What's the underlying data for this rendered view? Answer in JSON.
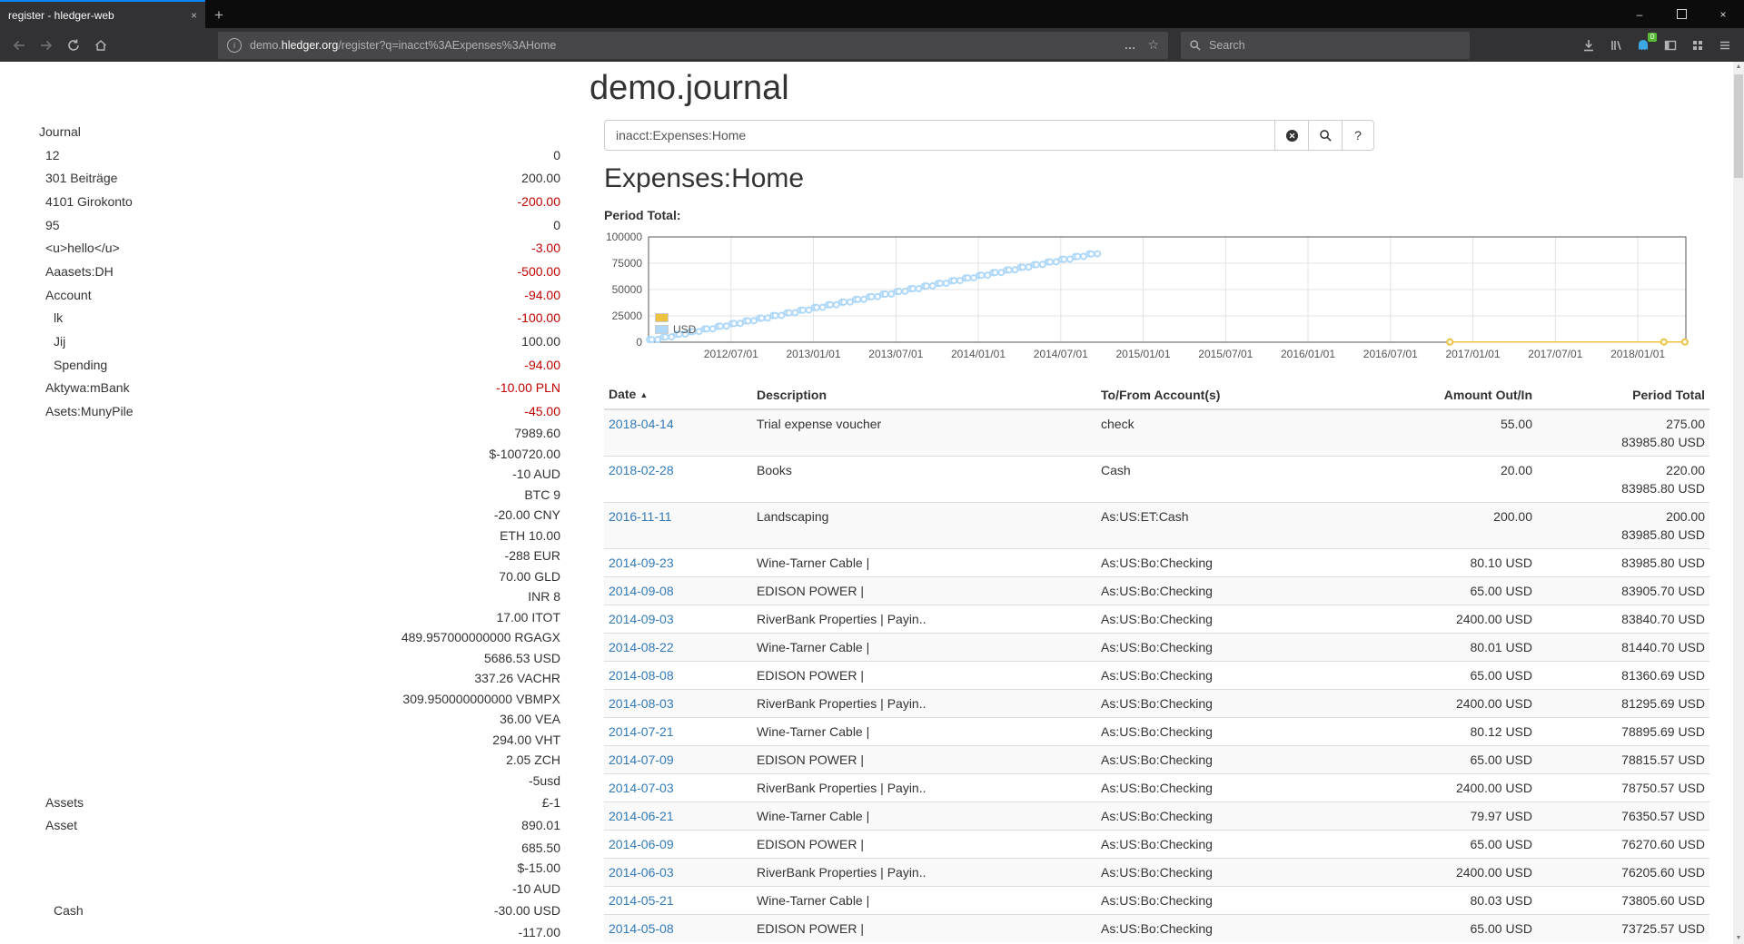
{
  "browser": {
    "tab_title": "register - hledger-web",
    "url": {
      "pre": "demo.",
      "domain": "hledger.org",
      "path": "/register?q=inacct%3AExpenses%3AHome"
    },
    "search_placeholder": "Search",
    "extension_badge": "0"
  },
  "page": {
    "title": "demo.journal",
    "query": "inacct:Expenses:Home",
    "heading": "Expenses:Home",
    "period_total_label": "Period Total:",
    "help_label": "?"
  },
  "sidebar": {
    "heading": "Journal",
    "rows": [
      {
        "label": "12",
        "amount": "0",
        "depth": 1,
        "neg": false
      },
      {
        "label": "301 Beiträge",
        "amount": "200.00",
        "depth": 1,
        "neg": false
      },
      {
        "label": "4101 Girokonto",
        "amount": "-200.00",
        "depth": 1,
        "neg": true
      },
      {
        "label": "95",
        "amount": "0",
        "depth": 1,
        "neg": false
      },
      {
        "label": "<u>hello</u>",
        "amount": "-3.00",
        "depth": 1,
        "neg": true
      },
      {
        "label": "Aaasets:DH",
        "amount": "-500.00",
        "depth": 1,
        "neg": true
      },
      {
        "label": "Account",
        "amount": "-94.00",
        "depth": 1,
        "neg": true
      },
      {
        "label": "lk",
        "amount": "-100.00",
        "depth": 2,
        "neg": true
      },
      {
        "label": "Jij",
        "amount": "100.00",
        "depth": 2,
        "neg": false
      },
      {
        "label": "Spending",
        "amount": "-94.00",
        "depth": 2,
        "neg": true
      },
      {
        "label": "Aktywa:mBank",
        "amount": "-10.00 PLN",
        "depth": 1,
        "neg": true
      },
      {
        "label": "Asets:MunyPile",
        "amount": "-45.00",
        "depth": 1,
        "neg": true
      },
      {
        "label": "",
        "amount": "7989.60",
        "neg": false
      },
      {
        "label": "",
        "amount": "$-100720.00",
        "neg": false
      },
      {
        "label": "",
        "amount": "-10 AUD",
        "neg": false
      },
      {
        "label": "",
        "amount": "BTC 9",
        "neg": false
      },
      {
        "label": "",
        "amount": "-20.00 CNY",
        "neg": false
      },
      {
        "label": "",
        "amount": "ETH 10.00",
        "neg": false
      },
      {
        "label": "",
        "amount": "-288 EUR",
        "neg": false
      },
      {
        "label": "",
        "amount": "70.00 GLD",
        "neg": false
      },
      {
        "label": "",
        "amount": "INR 8",
        "neg": false
      },
      {
        "label": "",
        "amount": "17.00 ITOT",
        "neg": false
      },
      {
        "label": "",
        "amount": "489.957000000000 RGAGX",
        "neg": false
      },
      {
        "label": "",
        "amount": "5686.53 USD",
        "neg": false
      },
      {
        "label": "",
        "amount": "337.26 VACHR",
        "neg": false
      },
      {
        "label": "",
        "amount": "309.950000000000 VBMPX",
        "neg": false
      },
      {
        "label": "",
        "amount": "36.00 VEA",
        "neg": false
      },
      {
        "label": "",
        "amount": "294.00 VHT",
        "neg": false
      },
      {
        "label": "",
        "amount": "2.05 ZCH",
        "neg": false
      },
      {
        "label": "",
        "amount": "-5usd",
        "neg": false
      },
      {
        "label": "Assets",
        "amount": "£-1",
        "depth": 1,
        "neg": false
      },
      {
        "label": "Asset",
        "amount": "890.01",
        "depth": 1,
        "neg": false
      },
      {
        "label": "",
        "amount": "685.50",
        "neg": false
      },
      {
        "label": "",
        "amount": "$-15.00",
        "neg": false
      },
      {
        "label": "",
        "amount": "-10 AUD",
        "neg": false
      },
      {
        "label": "Cash",
        "amount": "-30.00 USD",
        "depth": 2,
        "neg": false
      },
      {
        "label": "",
        "amount": "-117.00",
        "neg": false
      }
    ]
  },
  "chart_data": {
    "type": "line",
    "title": "Period Total:",
    "x_axis": {
      "unit": "months since 2012-01-01",
      "min": 0,
      "max": 75.5,
      "ticks": [
        {
          "m": 6,
          "label": "2012/07/01"
        },
        {
          "m": 12,
          "label": "2013/01/01"
        },
        {
          "m": 18,
          "label": "2013/07/01"
        },
        {
          "m": 24,
          "label": "2014/01/01"
        },
        {
          "m": 30,
          "label": "2014/07/01"
        },
        {
          "m": 36,
          "label": "2015/01/01"
        },
        {
          "m": 42,
          "label": "2015/07/01"
        },
        {
          "m": 48,
          "label": "2016/01/01"
        },
        {
          "m": 54,
          "label": "2016/07/01"
        },
        {
          "m": 60,
          "label": "2017/01/01"
        },
        {
          "m": 66,
          "label": "2017/07/01"
        },
        {
          "m": 72,
          "label": "2018/01/01"
        }
      ]
    },
    "y_axis": {
      "min": 0,
      "max": 100000,
      "ticks": [
        0,
        25000,
        50000,
        75000,
        100000
      ]
    },
    "legend": [
      {
        "label": "",
        "color": "#edc240"
      },
      {
        "label": "USD",
        "color": "#afd8f8"
      }
    ],
    "series": [
      {
        "name": "",
        "color": "#edc240",
        "points": [
          [
            58.33,
            200
          ],
          [
            73.9,
            220
          ],
          [
            75.43,
            275
          ]
        ]
      },
      {
        "name": "USD",
        "color": "#afd8f8",
        "points": [
          [
            0.07,
            2400
          ],
          [
            0.23,
            2465
          ],
          [
            0.67,
            2545
          ],
          [
            1.07,
            4945
          ],
          [
            1.23,
            5010
          ],
          [
            1.67,
            5090
          ],
          [
            2.07,
            7490
          ],
          [
            2.23,
            7555
          ],
          [
            2.67,
            7635
          ],
          [
            3.07,
            10035
          ],
          [
            3.23,
            10100
          ],
          [
            3.67,
            10180
          ],
          [
            4.07,
            12580
          ],
          [
            4.23,
            12645
          ],
          [
            4.67,
            12725
          ],
          [
            5.07,
            15125
          ],
          [
            5.23,
            15190
          ],
          [
            5.67,
            15270
          ],
          [
            6.07,
            17670
          ],
          [
            6.23,
            17735
          ],
          [
            6.67,
            17815
          ],
          [
            7.07,
            20215
          ],
          [
            7.23,
            20280
          ],
          [
            7.67,
            20360
          ],
          [
            8.07,
            22760
          ],
          [
            8.23,
            22825
          ],
          [
            8.67,
            22905
          ],
          [
            9.07,
            25305
          ],
          [
            9.23,
            25370
          ],
          [
            9.67,
            25450
          ],
          [
            10.07,
            27850
          ],
          [
            10.23,
            27915
          ],
          [
            10.67,
            27995
          ],
          [
            11.07,
            30395
          ],
          [
            11.23,
            30460
          ],
          [
            11.67,
            30540
          ],
          [
            12.07,
            32940
          ],
          [
            12.23,
            33005
          ],
          [
            12.67,
            33085
          ],
          [
            13.07,
            35485
          ],
          [
            13.23,
            35550
          ],
          [
            13.67,
            35630
          ],
          [
            14.07,
            38030
          ],
          [
            14.23,
            38095
          ],
          [
            14.67,
            38175
          ],
          [
            15.07,
            40575
          ],
          [
            15.23,
            40640
          ],
          [
            15.67,
            40720
          ],
          [
            16.07,
            43120
          ],
          [
            16.23,
            43185
          ],
          [
            16.67,
            43265
          ],
          [
            17.07,
            45665
          ],
          [
            17.23,
            45730
          ],
          [
            17.67,
            45810
          ],
          [
            18.07,
            48210
          ],
          [
            18.23,
            48275
          ],
          [
            18.67,
            48355
          ],
          [
            19.07,
            50755
          ],
          [
            19.23,
            50820
          ],
          [
            19.67,
            50900
          ],
          [
            20.07,
            53300
          ],
          [
            20.23,
            53365
          ],
          [
            20.67,
            53445
          ],
          [
            21.07,
            55845
          ],
          [
            21.23,
            55910
          ],
          [
            21.67,
            55990
          ],
          [
            22.07,
            58390
          ],
          [
            22.23,
            58455
          ],
          [
            22.67,
            58535
          ],
          [
            23.07,
            60935
          ],
          [
            23.23,
            61000
          ],
          [
            23.67,
            61080
          ],
          [
            24.07,
            63480
          ],
          [
            24.23,
            63545
          ],
          [
            24.67,
            63625
          ],
          [
            25.07,
            66025
          ],
          [
            25.23,
            66090
          ],
          [
            25.67,
            66170
          ],
          [
            26.07,
            68570
          ],
          [
            26.23,
            68635
          ],
          [
            26.67,
            68715
          ],
          [
            27.07,
            71115
          ],
          [
            27.23,
            71180
          ],
          [
            27.67,
            71260
          ],
          [
            28.07,
            73660
          ],
          [
            28.23,
            73725
          ],
          [
            28.67,
            73805
          ],
          [
            29.07,
            76205
          ],
          [
            29.23,
            76270
          ],
          [
            29.67,
            76350
          ],
          [
            30.07,
            78750
          ],
          [
            30.23,
            78815
          ],
          [
            30.67,
            78895
          ],
          [
            31.07,
            81295
          ],
          [
            31.23,
            81360
          ],
          [
            31.67,
            81440
          ],
          [
            32.07,
            83840
          ],
          [
            32.23,
            83905
          ],
          [
            32.67,
            83985
          ]
        ]
      }
    ]
  },
  "register": {
    "sort_caret": "▲",
    "columns": [
      "Date",
      "Description",
      "To/From Account(s)",
      "Amount Out/In",
      "Period Total"
    ],
    "rows": [
      {
        "date": "2018-04-14",
        "description": "Trial expense voucher",
        "account": "check",
        "amount": "55.00",
        "total": [
          "275.00",
          "83985.80 USD"
        ]
      },
      {
        "date": "2018-02-28",
        "description": "Books",
        "account": "Cash",
        "amount": "20.00",
        "total": [
          "220.00",
          "83985.80 USD"
        ]
      },
      {
        "date": "2016-11-11",
        "description": "Landscaping",
        "account": "As:US:ET:Cash",
        "amount": "200.00",
        "total": [
          "200.00",
          "83985.80 USD"
        ]
      },
      {
        "date": "2014-09-23",
        "description": "Wine-Tarner Cable |",
        "account": "As:US:Bo:Checking",
        "amount": "80.10 USD",
        "total": [
          "83985.80 USD"
        ]
      },
      {
        "date": "2014-09-08",
        "description": "EDISON POWER |",
        "account": "As:US:Bo:Checking",
        "amount": "65.00 USD",
        "total": [
          "83905.70 USD"
        ]
      },
      {
        "date": "2014-09-03",
        "description": "RiverBank Properties | Payin..",
        "account": "As:US:Bo:Checking",
        "amount": "2400.00 USD",
        "total": [
          "83840.70 USD"
        ]
      },
      {
        "date": "2014-08-22",
        "description": "Wine-Tarner Cable |",
        "account": "As:US:Bo:Checking",
        "amount": "80.01 USD",
        "total": [
          "81440.70 USD"
        ]
      },
      {
        "date": "2014-08-08",
        "description": "EDISON POWER |",
        "account": "As:US:Bo:Checking",
        "amount": "65.00 USD",
        "total": [
          "81360.69 USD"
        ]
      },
      {
        "date": "2014-08-03",
        "description": "RiverBank Properties | Payin..",
        "account": "As:US:Bo:Checking",
        "amount": "2400.00 USD",
        "total": [
          "81295.69 USD"
        ]
      },
      {
        "date": "2014-07-21",
        "description": "Wine-Tarner Cable |",
        "account": "As:US:Bo:Checking",
        "amount": "80.12 USD",
        "total": [
          "78895.69 USD"
        ]
      },
      {
        "date": "2014-07-09",
        "description": "EDISON POWER |",
        "account": "As:US:Bo:Checking",
        "amount": "65.00 USD",
        "total": [
          "78815.57 USD"
        ]
      },
      {
        "date": "2014-07-03",
        "description": "RiverBank Properties | Payin..",
        "account": "As:US:Bo:Checking",
        "amount": "2400.00 USD",
        "total": [
          "78750.57 USD"
        ]
      },
      {
        "date": "2014-06-21",
        "description": "Wine-Tarner Cable |",
        "account": "As:US:Bo:Checking",
        "amount": "79.97 USD",
        "total": [
          "76350.57 USD"
        ]
      },
      {
        "date": "2014-06-09",
        "description": "EDISON POWER |",
        "account": "As:US:Bo:Checking",
        "amount": "65.00 USD",
        "total": [
          "76270.60 USD"
        ]
      },
      {
        "date": "2014-06-03",
        "description": "RiverBank Properties | Payin..",
        "account": "As:US:Bo:Checking",
        "amount": "2400.00 USD",
        "total": [
          "76205.60 USD"
        ]
      },
      {
        "date": "2014-05-21",
        "description": "Wine-Tarner Cable |",
        "account": "As:US:Bo:Checking",
        "amount": "80.03 USD",
        "total": [
          "73805.60 USD"
        ]
      },
      {
        "date": "2014-05-08",
        "description": "EDISON POWER |",
        "account": "As:US:Bo:Checking",
        "amount": "65.00 USD",
        "total": [
          "73725.57 USD"
        ]
      }
    ]
  }
}
